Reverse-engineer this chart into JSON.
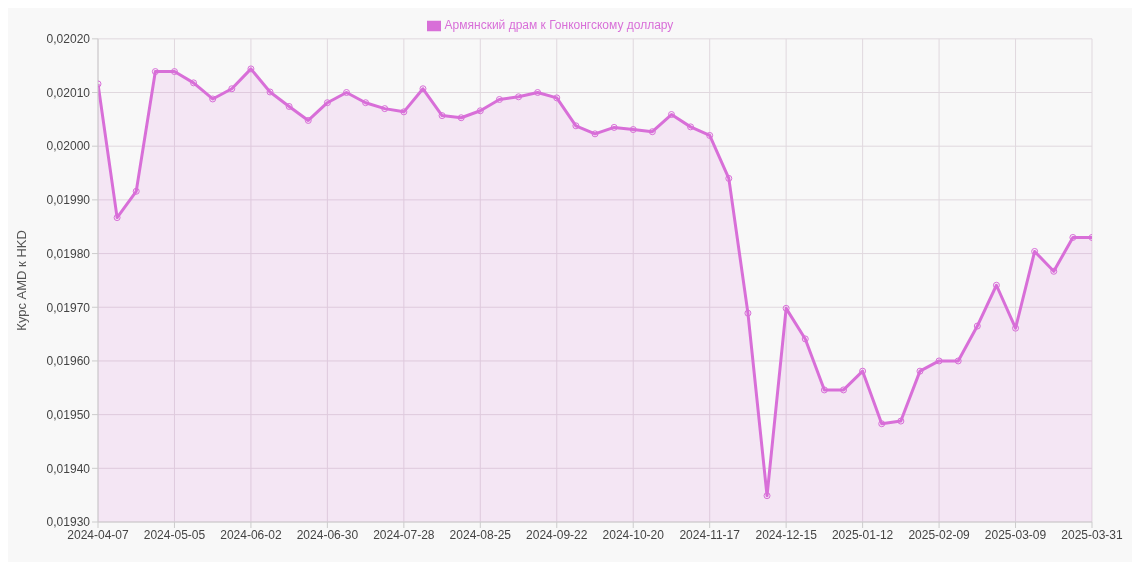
{
  "chart_data": {
    "type": "area",
    "ylabel": "Курс AMD к HKD",
    "categories": [
      "2024-04-07",
      null,
      null,
      null,
      "2024-05-05",
      null,
      null,
      null,
      "2024-06-02",
      null,
      null,
      null,
      "2024-06-30",
      null,
      null,
      null,
      "2024-07-28",
      null,
      null,
      null,
      "2024-08-25",
      null,
      null,
      null,
      "2024-09-22",
      null,
      null,
      null,
      "2024-10-20",
      null,
      null,
      null,
      "2024-11-17",
      null,
      null,
      null,
      "2024-12-15",
      null,
      null,
      null,
      "2025-01-12",
      null,
      null,
      null,
      "2025-02-09",
      null,
      null,
      null,
      "2025-03-09",
      null,
      null,
      null,
      "2025-03-31"
    ],
    "series": [
      {
        "name": "Армянский драм к Гонконгскому доллару",
        "color": "#d86fd8",
        "values": [
          0.020116,
          0.019867,
          0.019916,
          0.020139,
          0.020139,
          0.020118,
          0.020088,
          0.020107,
          0.020144,
          0.020101,
          0.020074,
          0.020048,
          0.020081,
          0.0201,
          0.020081,
          0.02007,
          0.020064,
          0.020107,
          0.020057,
          0.020053,
          0.020066,
          0.020087,
          0.020092,
          0.0201,
          0.02009,
          0.020038,
          0.020023,
          0.020035,
          0.020031,
          0.020027,
          0.020059,
          0.020036,
          0.02002,
          0.01994,
          0.019689,
          0.019349,
          0.019698,
          0.019641,
          0.019546,
          0.019546,
          0.019581,
          0.019483,
          0.019488,
          0.019581,
          0.0196,
          0.0196,
          0.019665,
          0.019741,
          0.019661,
          0.019804,
          0.019767,
          0.01983,
          0.01983
        ]
      }
    ],
    "ylim": [
      0.0193,
      0.0202
    ],
    "yticks": [
      {
        "value": 0.0193,
        "label": "0,01930"
      },
      {
        "value": 0.0194,
        "label": "0,01940"
      },
      {
        "value": 0.0195,
        "label": "0,01950"
      },
      {
        "value": 0.0196,
        "label": "0,01960"
      },
      {
        "value": 0.0197,
        "label": "0,01970"
      },
      {
        "value": 0.0198,
        "label": "0,01980"
      },
      {
        "value": 0.0199,
        "label": "0,01990"
      },
      {
        "value": 0.02,
        "label": "0,02000"
      },
      {
        "value": 0.0201,
        "label": "0,02010"
      },
      {
        "value": 0.0202,
        "label": "0,02020"
      }
    ],
    "grid": true,
    "legend": "top",
    "marker": "circle",
    "line_style": "solid"
  }
}
